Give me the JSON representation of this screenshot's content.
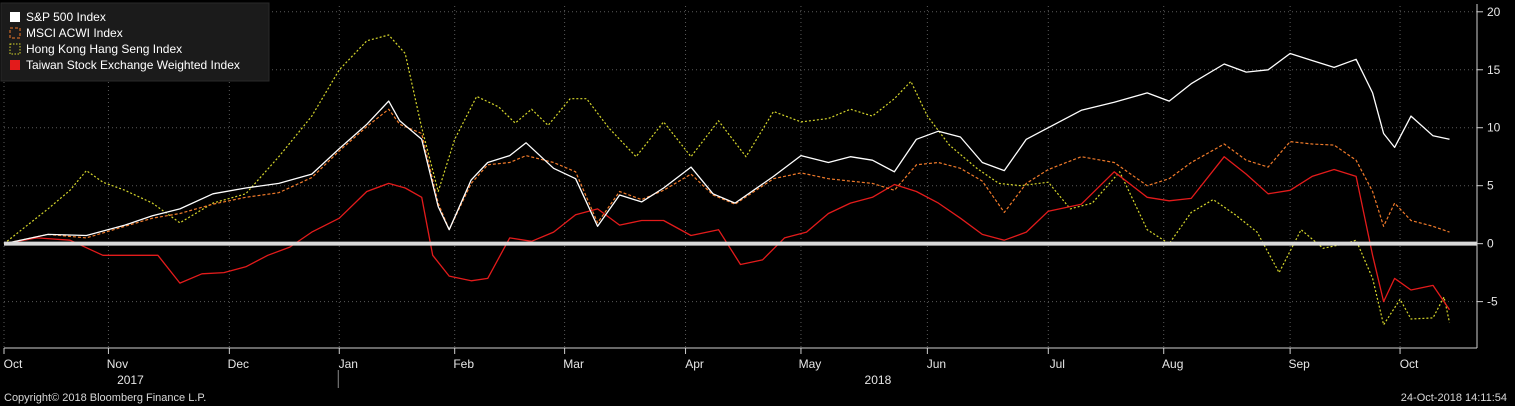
{
  "footer": {
    "copyright": "Copyright© 2018 Bloomberg Finance L.P.",
    "timestamp": "24-Oct-2018 14:11:54"
  },
  "colors": {
    "background": "#000000",
    "sp500": "#ffffff",
    "msci": "#f07a2a",
    "hangseng": "#d6d62b",
    "taiwan": "#e31b1b",
    "zero_line": "#d9d9d9"
  },
  "chart_data": {
    "type": "line",
    "x_unit": "trading day index (0 = early Oct 2017, 268 = 24 Oct 2018)",
    "ylim": [
      -9,
      20.5
    ],
    "y_ticks": [
      -5,
      0,
      5,
      10,
      15,
      20
    ],
    "grid": true,
    "legend_position": "top-left",
    "month_ticks": [
      {
        "label": "Oct",
        "x": 0
      },
      {
        "label": "Nov",
        "x": 19
      },
      {
        "label": "Dec",
        "x": 41
      },
      {
        "label": "Jan",
        "x": 61
      },
      {
        "label": "Feb",
        "x": 82
      },
      {
        "label": "Mar",
        "x": 102
      },
      {
        "label": "Apr",
        "x": 124
      },
      {
        "label": "May",
        "x": 145
      },
      {
        "label": "Jun",
        "x": 168
      },
      {
        "label": "Jul",
        "x": 190
      },
      {
        "label": "Aug",
        "x": 211
      },
      {
        "label": "Sep",
        "x": 234
      },
      {
        "label": "Oct",
        "x": 254
      }
    ],
    "year_labels": [
      {
        "label": "2017",
        "x": 23
      },
      {
        "label": "2018",
        "x": 159
      }
    ],
    "zero_line": 0,
    "series": [
      {
        "name": "S&P 500 Index",
        "style": "solid",
        "points": [
          [
            0,
            0
          ],
          [
            8,
            0.8
          ],
          [
            15,
            0.7
          ],
          [
            22,
            1.6
          ],
          [
            27,
            2.4
          ],
          [
            32,
            3
          ],
          [
            38,
            4.3
          ],
          [
            44,
            4.8
          ],
          [
            50,
            5.2
          ],
          [
            56,
            6
          ],
          [
            61,
            8.2
          ],
          [
            66,
            10.3
          ],
          [
            70,
            12.3
          ],
          [
            72,
            10.6
          ],
          [
            76,
            9
          ],
          [
            79,
            3.2
          ],
          [
            81,
            1.2
          ],
          [
            85,
            5.5
          ],
          [
            88,
            7
          ],
          [
            92,
            7.6
          ],
          [
            95,
            8.7
          ],
          [
            100,
            6.5
          ],
          [
            104,
            5.6
          ],
          [
            108,
            1.5
          ],
          [
            112,
            4.2
          ],
          [
            116,
            3.6
          ],
          [
            120,
            4.8
          ],
          [
            125,
            6.6
          ],
          [
            129,
            4.3
          ],
          [
            133,
            3.5
          ],
          [
            140,
            5.8
          ],
          [
            145,
            7.6
          ],
          [
            150,
            7
          ],
          [
            154,
            7.5
          ],
          [
            158,
            7.2
          ],
          [
            162,
            6.2
          ],
          [
            166,
            9
          ],
          [
            170,
            9.7
          ],
          [
            174,
            9.2
          ],
          [
            178,
            7
          ],
          [
            182,
            6.3
          ],
          [
            186,
            9
          ],
          [
            190,
            10
          ],
          [
            196,
            11.5
          ],
          [
            202,
            12.2
          ],
          [
            208,
            13
          ],
          [
            212,
            12.3
          ],
          [
            216,
            13.8
          ],
          [
            222,
            15.5
          ],
          [
            226,
            14.8
          ],
          [
            230,
            15
          ],
          [
            234,
            16.4
          ],
          [
            238,
            15.8
          ],
          [
            242,
            15.2
          ],
          [
            246,
            15.9
          ],
          [
            249,
            13
          ],
          [
            251,
            9.5
          ],
          [
            253,
            8.3
          ],
          [
            256,
            11
          ],
          [
            260,
            9.3
          ],
          [
            263,
            9
          ]
        ]
      },
      {
        "name": "MSCI ACWI Index",
        "style": "dashed",
        "points": [
          [
            0,
            0
          ],
          [
            8,
            0.8
          ],
          [
            15,
            0.5
          ],
          [
            22,
            1.5
          ],
          [
            27,
            2.2
          ],
          [
            32,
            2.6
          ],
          [
            38,
            3.4
          ],
          [
            44,
            4
          ],
          [
            50,
            4.4
          ],
          [
            56,
            5.7
          ],
          [
            61,
            8
          ],
          [
            66,
            10.1
          ],
          [
            70,
            11.6
          ],
          [
            72,
            10.3
          ],
          [
            76,
            9.5
          ],
          [
            79,
            3.5
          ],
          [
            81,
            1.2
          ],
          [
            85,
            5.2
          ],
          [
            88,
            6.8
          ],
          [
            92,
            7
          ],
          [
            95,
            7.6
          ],
          [
            100,
            7
          ],
          [
            104,
            6.2
          ],
          [
            108,
            1.8
          ],
          [
            112,
            4.5
          ],
          [
            116,
            3.8
          ],
          [
            120,
            4.6
          ],
          [
            125,
            6
          ],
          [
            129,
            4.2
          ],
          [
            133,
            3.4
          ],
          [
            140,
            5.6
          ],
          [
            145,
            6.1
          ],
          [
            150,
            5.6
          ],
          [
            154,
            5.4
          ],
          [
            158,
            5.2
          ],
          [
            162,
            4.6
          ],
          [
            166,
            6.8
          ],
          [
            170,
            7
          ],
          [
            174,
            6.5
          ],
          [
            178,
            5.4
          ],
          [
            182,
            2.7
          ],
          [
            186,
            5.2
          ],
          [
            190,
            6.4
          ],
          [
            196,
            7.5
          ],
          [
            202,
            7
          ],
          [
            208,
            5
          ],
          [
            212,
            5.6
          ],
          [
            216,
            7
          ],
          [
            222,
            8.6
          ],
          [
            226,
            7.2
          ],
          [
            230,
            6.6
          ],
          [
            234,
            8.8
          ],
          [
            238,
            8.6
          ],
          [
            242,
            8.5
          ],
          [
            246,
            7.2
          ],
          [
            249,
            4.5
          ],
          [
            251,
            1.5
          ],
          [
            253,
            3.5
          ],
          [
            256,
            2
          ],
          [
            260,
            1.5
          ],
          [
            263,
            1
          ]
        ]
      },
      {
        "name": "Hong Kong Hang Seng Index",
        "style": "dotted",
        "points": [
          [
            0,
            0
          ],
          [
            8,
            3
          ],
          [
            12,
            4.6
          ],
          [
            15,
            6.3
          ],
          [
            18,
            5.3
          ],
          [
            22,
            4.6
          ],
          [
            27,
            3.5
          ],
          [
            32,
            1.8
          ],
          [
            38,
            3.5
          ],
          [
            44,
            4.3
          ],
          [
            50,
            7.5
          ],
          [
            56,
            11
          ],
          [
            61,
            15
          ],
          [
            66,
            17.5
          ],
          [
            70,
            18
          ],
          [
            73,
            16.4
          ],
          [
            76,
            10
          ],
          [
            79,
            4.5
          ],
          [
            82,
            9
          ],
          [
            86,
            12.7
          ],
          [
            90,
            11.8
          ],
          [
            93,
            10.4
          ],
          [
            96,
            11.6
          ],
          [
            99,
            10.2
          ],
          [
            103,
            12.5
          ],
          [
            106,
            12.5
          ],
          [
            110,
            10
          ],
          [
            115,
            7.5
          ],
          [
            120,
            10.5
          ],
          [
            125,
            7.5
          ],
          [
            130,
            10.6
          ],
          [
            135,
            7.5
          ],
          [
            140,
            11.4
          ],
          [
            145,
            10.5
          ],
          [
            150,
            10.8
          ],
          [
            154,
            11.6
          ],
          [
            158,
            11
          ],
          [
            162,
            12.5
          ],
          [
            165,
            14
          ],
          [
            168,
            11
          ],
          [
            172,
            8.5
          ],
          [
            177,
            6.5
          ],
          [
            181,
            5.2
          ],
          [
            185,
            5
          ],
          [
            190,
            5.3
          ],
          [
            194,
            3
          ],
          [
            198,
            3.5
          ],
          [
            203,
            6.2
          ],
          [
            208,
            1.2
          ],
          [
            212,
            0
          ],
          [
            216,
            2.7
          ],
          [
            220,
            3.8
          ],
          [
            224,
            2.5
          ],
          [
            228,
            1
          ],
          [
            232,
            -2.5
          ],
          [
            236,
            1.2
          ],
          [
            240,
            -0.4
          ],
          [
            244,
            0
          ],
          [
            246,
            0.3
          ],
          [
            249,
            -3
          ],
          [
            251,
            -7
          ],
          [
            254,
            -4.8
          ],
          [
            256,
            -6.5
          ],
          [
            260,
            -6.4
          ],
          [
            262,
            -4.6
          ],
          [
            263,
            -6.8
          ]
        ]
      },
      {
        "name": "Taiwan Stock Exchange Weighted Index",
        "style": "solid",
        "points": [
          [
            0,
            0
          ],
          [
            6,
            0.5
          ],
          [
            12,
            0.3
          ],
          [
            18,
            -1
          ],
          [
            24,
            -1
          ],
          [
            28,
            -1
          ],
          [
            32,
            -3.4
          ],
          [
            36,
            -2.6
          ],
          [
            40,
            -2.5
          ],
          [
            44,
            -2
          ],
          [
            48,
            -1
          ],
          [
            52,
            -0.3
          ],
          [
            56,
            1
          ],
          [
            61,
            2.2
          ],
          [
            66,
            4.5
          ],
          [
            70,
            5.2
          ],
          [
            73,
            4.8
          ],
          [
            76,
            4
          ],
          [
            78,
            -1
          ],
          [
            81,
            -2.8
          ],
          [
            85,
            -3.2
          ],
          [
            88,
            -3
          ],
          [
            92,
            0.5
          ],
          [
            96,
            0.2
          ],
          [
            100,
            1
          ],
          [
            104,
            2.5
          ],
          [
            108,
            3
          ],
          [
            112,
            1.6
          ],
          [
            116,
            2
          ],
          [
            120,
            2
          ],
          [
            125,
            0.7
          ],
          [
            130,
            1.2
          ],
          [
            134,
            -1.8
          ],
          [
            138,
            -1.4
          ],
          [
            142,
            0.5
          ],
          [
            146,
            1
          ],
          [
            150,
            2.6
          ],
          [
            154,
            3.5
          ],
          [
            158,
            4
          ],
          [
            162,
            5.1
          ],
          [
            166,
            4.5
          ],
          [
            170,
            3.5
          ],
          [
            174,
            2.2
          ],
          [
            178,
            0.8
          ],
          [
            182,
            0.3
          ],
          [
            186,
            1
          ],
          [
            190,
            2.8
          ],
          [
            196,
            3.4
          ],
          [
            202,
            6.2
          ],
          [
            208,
            4
          ],
          [
            212,
            3.7
          ],
          [
            216,
            3.9
          ],
          [
            222,
            7.5
          ],
          [
            226,
            6
          ],
          [
            230,
            4.3
          ],
          [
            234,
            4.6
          ],
          [
            238,
            5.8
          ],
          [
            242,
            6.4
          ],
          [
            246,
            5.8
          ],
          [
            249,
            -1
          ],
          [
            251,
            -5
          ],
          [
            253,
            -3
          ],
          [
            256,
            -4
          ],
          [
            260,
            -3.6
          ],
          [
            263,
            -5.7
          ]
        ]
      }
    ]
  }
}
